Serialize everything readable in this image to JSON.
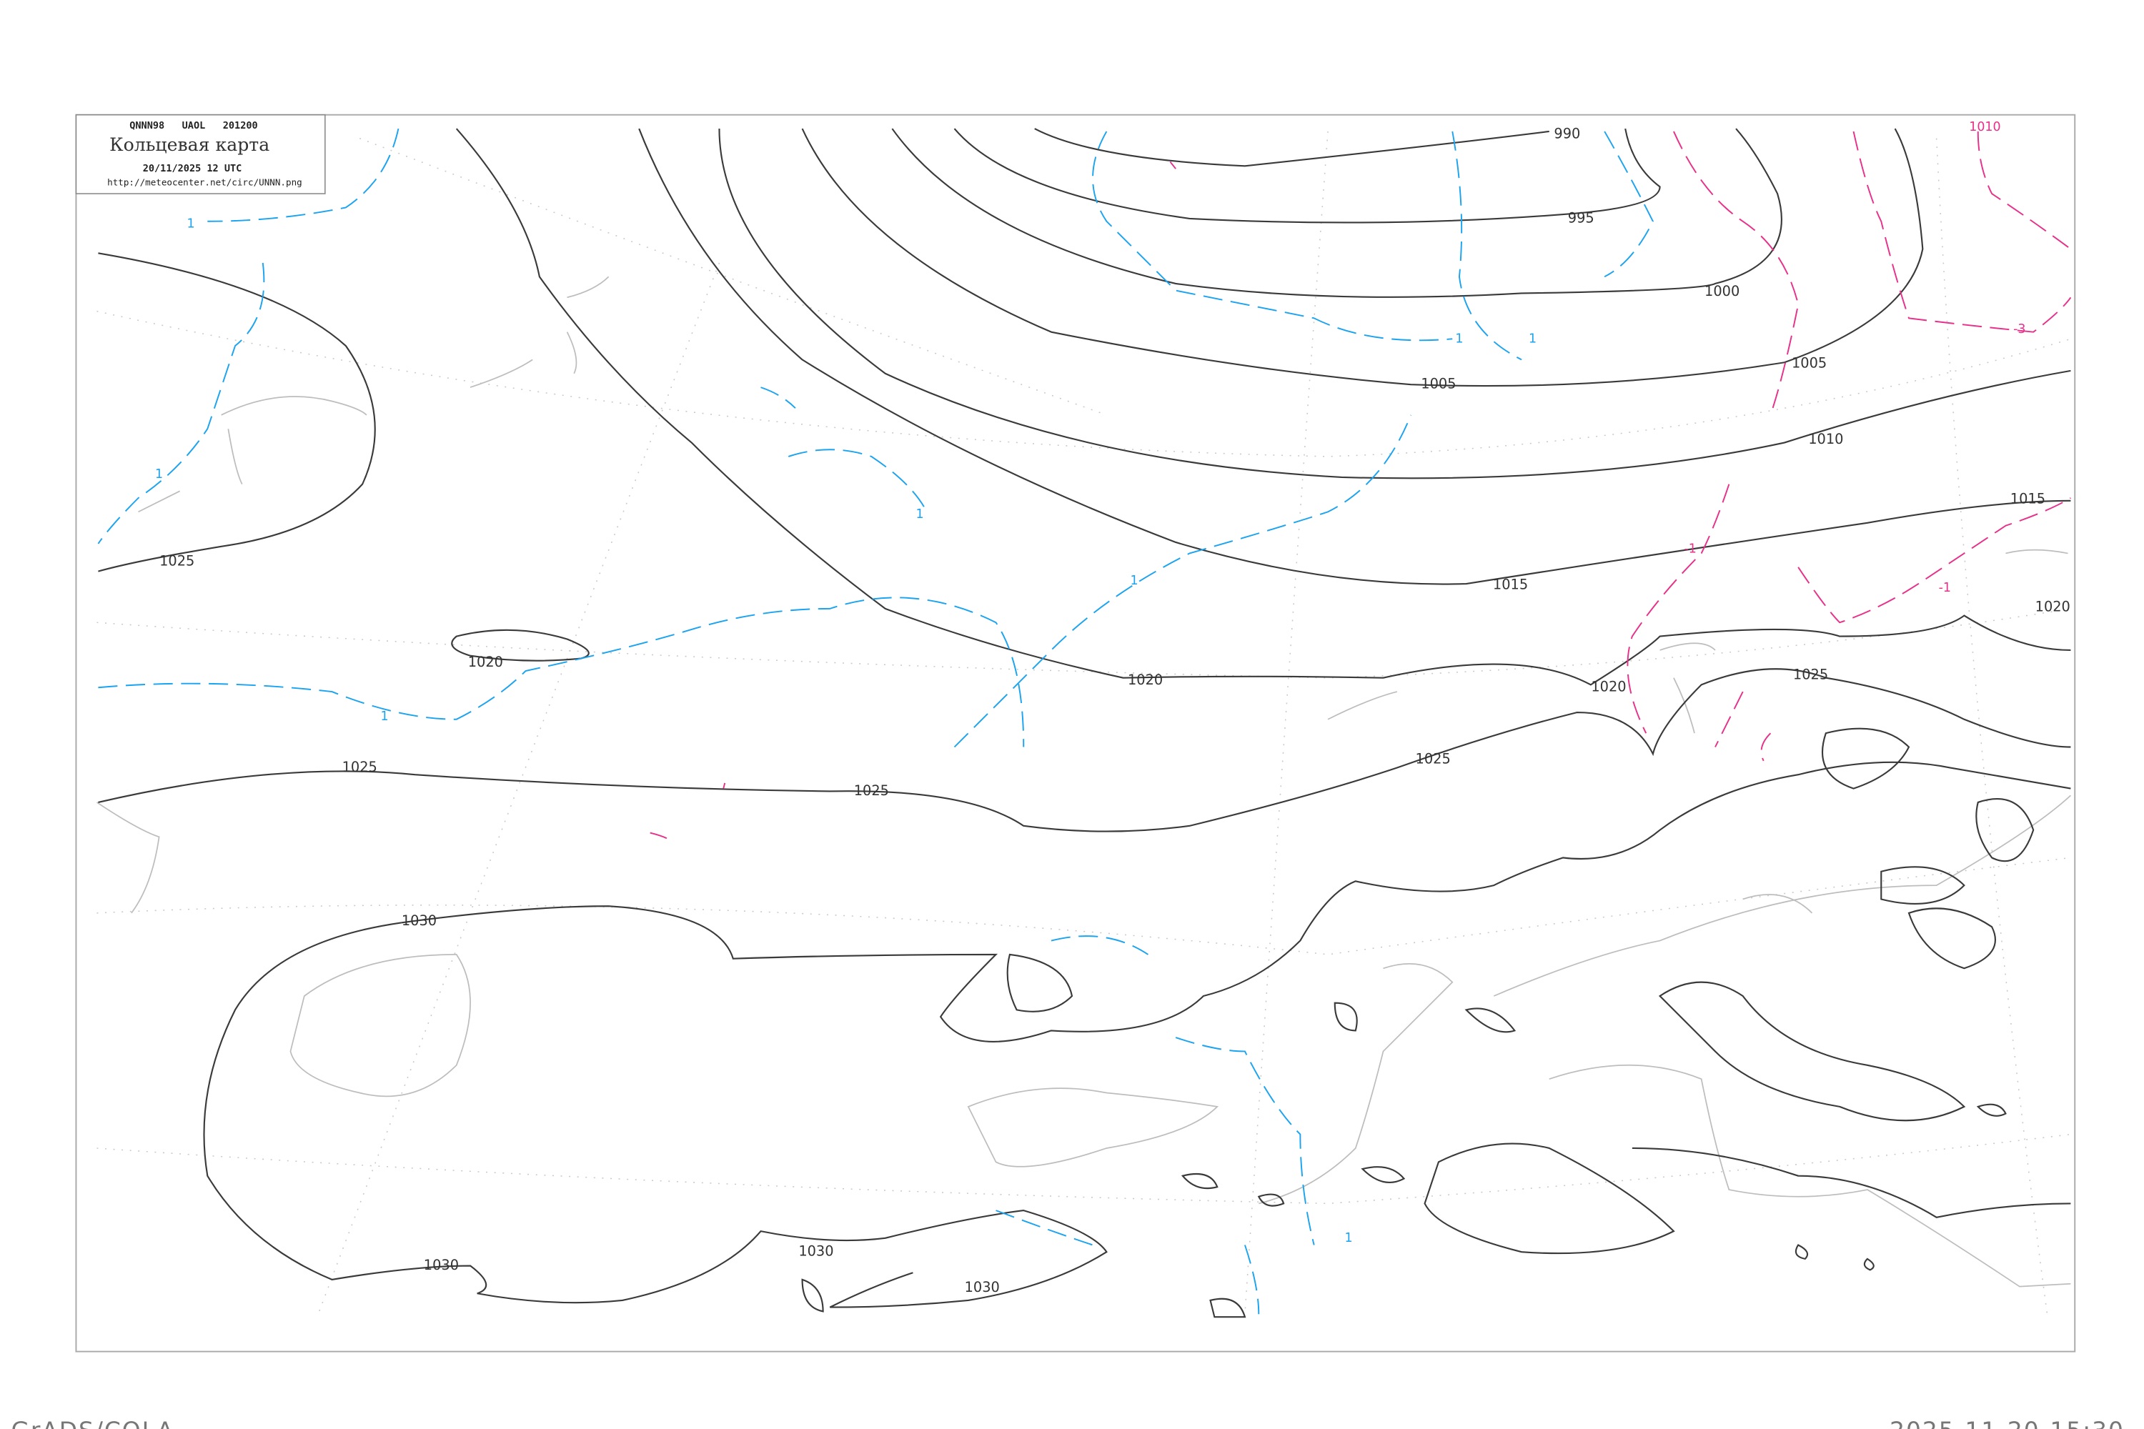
{
  "header": {
    "code_line": "QNNN98   UAOL   201200",
    "title": "Кольцевая карта",
    "datetime": "20/11/2025 12 UTC",
    "url": "http://meteocenter.net/circ/UNNN.png"
  },
  "footer": {
    "left": "GrADS/COLA",
    "right": "2025-11-20-15:30"
  },
  "colors": {
    "isobar": "#3a3a3a",
    "coastline": "#bdbdbd",
    "positive_contour": "#1aa3f0",
    "negative_contour": "#e8308a"
  },
  "isobar_labels": [
    "990",
    "995",
    "1000",
    "1005",
    "1005",
    "1010",
    "1015",
    "1015",
    "1020",
    "1020",
    "1020",
    "1020",
    "1025",
    "1025",
    "1025",
    "1025",
    "1025",
    "1030",
    "1030",
    "1030",
    "1030",
    "1020"
  ],
  "blue_labels": [
    "1",
    "1",
    "1",
    "1",
    "1",
    "1",
    "1",
    "1"
  ],
  "magenta_labels": [
    "-1",
    "-1",
    "-3",
    "1010"
  ]
}
